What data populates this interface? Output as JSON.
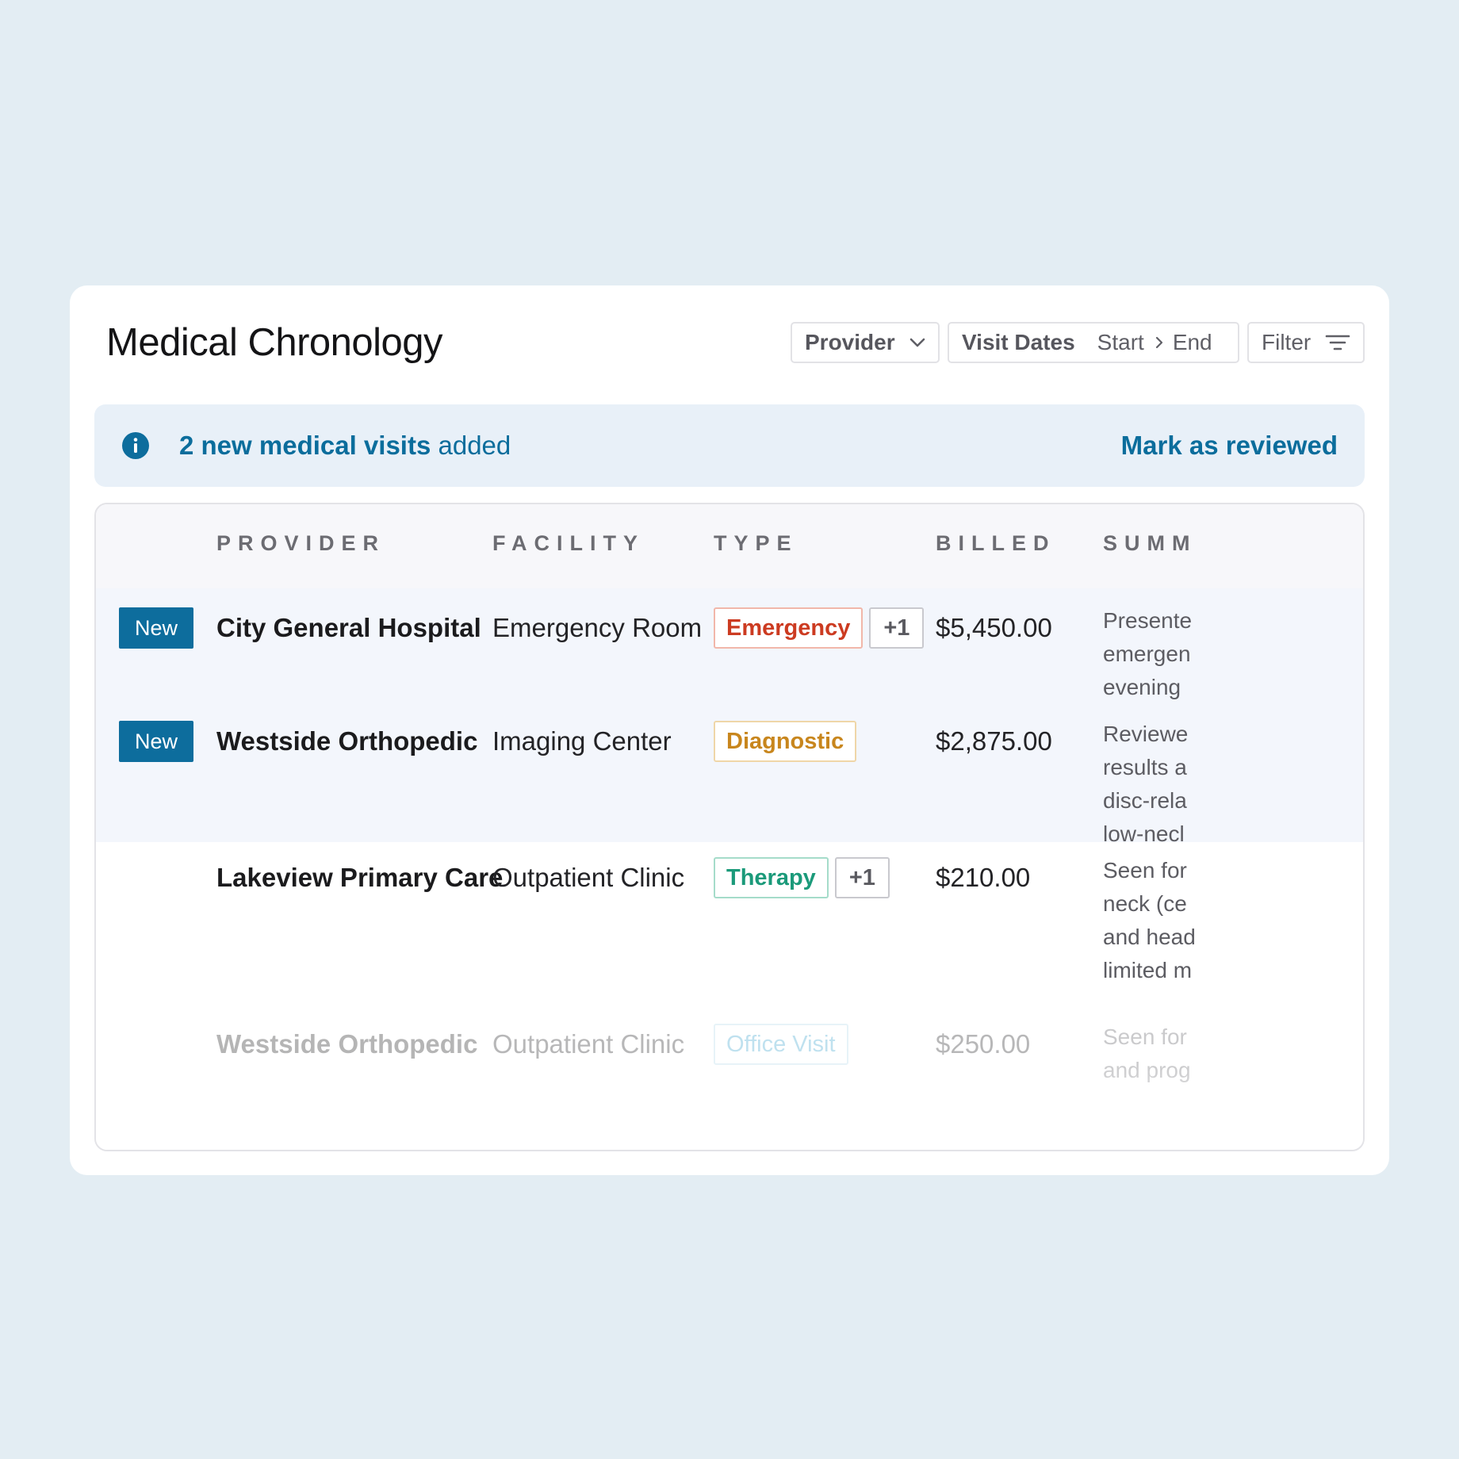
{
  "header": {
    "title": "Medical Chronology",
    "provider_filter": "Provider",
    "visit_dates_label": "Visit Dates",
    "start_placeholder": "Start",
    "end_placeholder": "End",
    "filter_label": "Filter"
  },
  "banner": {
    "count_text": "2 new medical visits",
    "suffix_text": " added",
    "action": "Mark as reviewed"
  },
  "table": {
    "columns": [
      "PROVIDER",
      "FACILITY",
      "TYPE",
      "BILLED",
      "SUMM"
    ],
    "rows": [
      {
        "badge": "New",
        "provider": "City General Hospital",
        "facility": "Emergency Room",
        "type": "Emergency",
        "more": "+1",
        "billed": "$5,450.00",
        "summary_lines": [
          "Presente",
          "emergen",
          "evening"
        ]
      },
      {
        "badge": "New",
        "provider": "Westside Orthopedic",
        "facility": "Imaging Center",
        "type": "Diagnostic",
        "more": "",
        "billed": "$2,875.00",
        "summary_lines": [
          "Reviewe",
          "results a",
          "disc-rela",
          "low-necl"
        ]
      },
      {
        "badge": "",
        "provider": "Lakeview Primary Care",
        "facility": "Outpatient Clinic",
        "type": "Therapy",
        "more": "+1",
        "billed": "$210.00",
        "summary_lines": [
          "Seen for",
          "neck (ce",
          "and head",
          "limited m"
        ]
      },
      {
        "badge": "",
        "provider": "Westside Orthopedic",
        "facility": "Outpatient Clinic",
        "type": "Office Visit",
        "more": "",
        "billed": "$250.00",
        "summary_lines": [
          "Seen for",
          "and prog"
        ]
      }
    ]
  },
  "colors": {
    "accent": "#0d6d9d",
    "emergency": "#cc3b21",
    "diagnostic": "#c8861d",
    "therapy": "#1b9a7a",
    "office_visit": "#3aa3cf"
  },
  "icons": [
    "chevron-down-icon",
    "chevron-right-icon",
    "filter-lines-icon",
    "info-icon"
  ]
}
